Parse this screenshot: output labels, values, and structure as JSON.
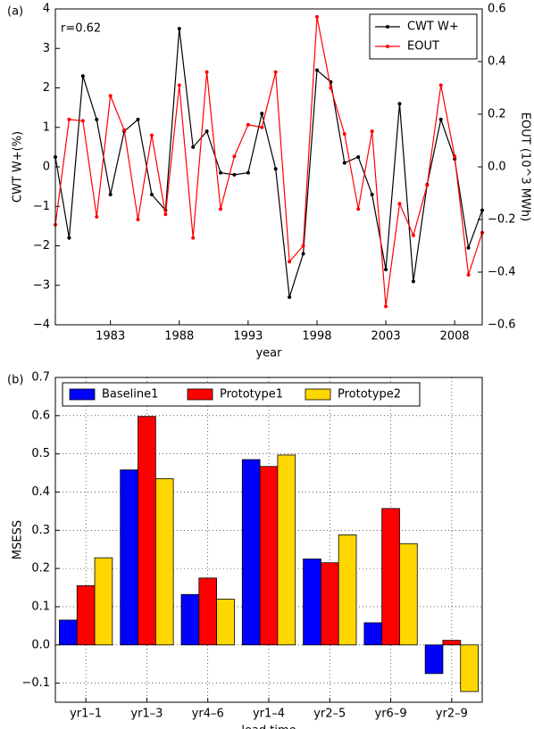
{
  "chart_data": [
    {
      "type": "line",
      "panel_label": "(a)",
      "annotation": "r=0.62",
      "x": [
        1979,
        1980,
        1981,
        1982,
        1983,
        1984,
        1985,
        1986,
        1987,
        1988,
        1989,
        1990,
        1991,
        1992,
        1993,
        1994,
        1995,
        1996,
        1997,
        1998,
        1999,
        2000,
        2001,
        2002,
        2003,
        2004,
        2005,
        2006,
        2007,
        2008,
        2009,
        2010
      ],
      "xlabel": "year",
      "ylabel": "CWT W+(%)",
      "y2label": "EOUT (10^3 MWh)",
      "xlim": [
        1979,
        2010
      ],
      "xticks": [
        1983,
        1988,
        1993,
        1998,
        2003,
        2008
      ],
      "ylim": [
        -4,
        4
      ],
      "yticks": [
        {
          "value": -4,
          "label": "−4"
        },
        {
          "value": -3,
          "label": "−3"
        },
        {
          "value": -2,
          "label": "−2"
        },
        {
          "value": -1,
          "label": "−1"
        },
        0,
        1,
        2,
        3,
        4
      ],
      "y2lim": [
        -0.6,
        0.6
      ],
      "y2ticks": [
        {
          "value": -0.6,
          "label": "−0.6"
        },
        {
          "value": -0.4,
          "label": "−0.4"
        },
        {
          "value": -0.2,
          "label": "−0.2"
        },
        {
          "value": 0,
          "label": "0.0"
        },
        0.2,
        0.4,
        0.6
      ],
      "grid": false,
      "legend": "upper right",
      "series": [
        {
          "name": "CWT W+",
          "color": "#000000",
          "values": [
            0.25,
            -1.8,
            2.3,
            1.2,
            -0.7,
            0.9,
            1.2,
            -0.7,
            -1.1,
            3.5,
            0.5,
            0.9,
            -0.15,
            -0.2,
            -0.15,
            1.35,
            -0.05,
            -3.3,
            -2.2,
            2.45,
            2.15,
            0.1,
            0.25,
            -0.7,
            -2.6,
            1.6,
            -2.9,
            -0.45,
            1.2,
            0.2,
            -2.05,
            -1.1
          ]
        },
        {
          "name": "EOUT",
          "color": "#ff0000",
          "axis": "y2",
          "values": [
            -0.22,
            0.18,
            0.175,
            -0.19,
            0.27,
            0.14,
            -0.2,
            0.12,
            -0.18,
            0.31,
            -0.27,
            0.36,
            -0.16,
            0.04,
            0.16,
            0.15,
            0.36,
            -0.36,
            -0.3,
            0.57,
            0.3,
            0.125,
            -0.16,
            0.135,
            -0.53,
            -0.14,
            -0.26,
            -0.07,
            0.31,
            0.04,
            -0.41,
            -0.25
          ]
        }
      ]
    },
    {
      "type": "bar",
      "panel_label": "(b)",
      "categories": [
        "yr1–1",
        "yr1–3",
        "yr4–6",
        "yr1–4",
        "yr2–5",
        "yr6–9",
        "yr2–9"
      ],
      "xlabel": "lead time",
      "ylabel": "MSESS",
      "ylim": [
        -0.15,
        0.7
      ],
      "yticks": [
        {
          "value": -0.1,
          "label": "−0.1"
        },
        {
          "value": 0,
          "label": "0.0"
        },
        0.1,
        0.2,
        0.3,
        0.4,
        0.5,
        0.6,
        0.7
      ],
      "grid": true,
      "legend": "upper left",
      "series": [
        {
          "name": "Baseline1",
          "color": "#0000ff",
          "values": [
            0.065,
            0.458,
            0.132,
            0.485,
            0.225,
            0.058,
            -0.075
          ]
        },
        {
          "name": "Prototype1",
          "color": "#ff0000",
          "values": [
            0.155,
            0.598,
            0.175,
            0.467,
            0.215,
            0.357,
            0.012
          ]
        },
        {
          "name": "Prototype2",
          "color": "#ffd700",
          "values": [
            0.228,
            0.435,
            0.12,
            0.497,
            0.288,
            0.265,
            -0.122
          ]
        }
      ]
    }
  ]
}
